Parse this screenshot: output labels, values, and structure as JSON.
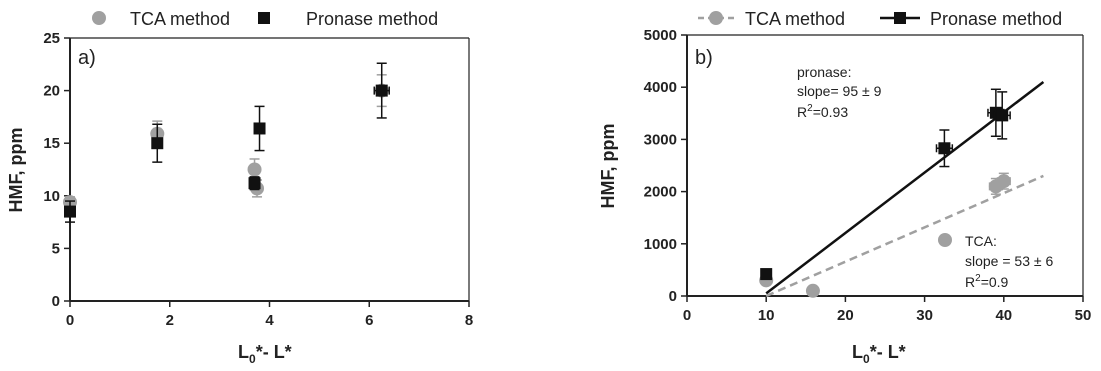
{
  "chart_data": [
    {
      "type": "scatter",
      "panel_label": "a)",
      "xlabel": "L",
      "xlabel_parts": {
        "base1": "L",
        "sub": "0",
        "rest": "*- L*"
      },
      "ylabel": "HMF, ppm",
      "xlim": [
        0,
        8
      ],
      "ylim": [
        0,
        25
      ],
      "xticks": [
        0,
        2,
        4,
        6,
        8
      ],
      "yticks": [
        0,
        5,
        10,
        15,
        20,
        25
      ],
      "legend_position": "top",
      "series": [
        {
          "name": "TCA method",
          "marker": "circle",
          "color": "#a0a0a0",
          "points": [
            {
              "x": 0.0,
              "y": 9.4,
              "yerr": 0.5,
              "xerr": 0.05
            },
            {
              "x": 1.75,
              "y": 15.9,
              "yerr": 1.2,
              "xerr": 0.05
            },
            {
              "x": 3.7,
              "y": 12.5,
              "yerr": 1.0,
              "xerr": 0.05
            },
            {
              "x": 3.75,
              "y": 10.7,
              "yerr": 0.8,
              "xerr": 0.05
            },
            {
              "x": 6.25,
              "y": 20.0,
              "yerr": 1.5,
              "xerr": 0.15
            }
          ]
        },
        {
          "name": "Pronase method",
          "marker": "square",
          "color": "#111111",
          "points": [
            {
              "x": 0.0,
              "y": 8.5,
              "yerr": 1.0,
              "xerr": 0.05
            },
            {
              "x": 1.75,
              "y": 15.0,
              "yerr": 1.8,
              "xerr": 0.05
            },
            {
              "x": 3.7,
              "y": 11.2,
              "yerr": 0.6,
              "xerr": 0.05
            },
            {
              "x": 3.8,
              "y": 16.4,
              "yerr": 2.1,
              "xerr": 0.05
            },
            {
              "x": 6.25,
              "y": 20.0,
              "yerr": 2.6,
              "xerr": 0.15
            }
          ]
        }
      ]
    },
    {
      "type": "scatter",
      "panel_label": "b)",
      "xlabel": "L",
      "xlabel_parts": {
        "base1": "L",
        "sub": "0",
        "rest": "*- L*"
      },
      "ylabel": "HMF, ppm",
      "xlim": [
        0,
        50
      ],
      "ylim": [
        0,
        5000
      ],
      "xticks": [
        0,
        10,
        20,
        30,
        40,
        50
      ],
      "yticks": [
        0,
        1000,
        2000,
        3000,
        4000,
        5000
      ],
      "legend_position": "top",
      "series": [
        {
          "name": "TCA method",
          "marker": "circle",
          "color": "#a0a0a0",
          "line_style": "dashed",
          "points": [
            {
              "x": 10.0,
              "y": 300,
              "yerr": 0,
              "xerr": 0
            },
            {
              "x": 15.9,
              "y": 100,
              "yerr": 0,
              "xerr": 0
            },
            {
              "x": 39.0,
              "y": 2100,
              "yerr": 150,
              "xerr": 0.8
            },
            {
              "x": 40.0,
              "y": 2200,
              "yerr": 150,
              "xerr": 0.8
            }
          ],
          "fit": {
            "x": [
              10,
              45
            ],
            "y": [
              0,
              2300
            ]
          }
        },
        {
          "name": "Pronase method",
          "marker": "square",
          "color": "#111111",
          "line_style": "solid",
          "points": [
            {
              "x": 10.0,
              "y": 420,
              "yerr": 0,
              "xerr": 0
            },
            {
              "x": 32.5,
              "y": 2830,
              "yerr": 350,
              "xerr": 1.0
            },
            {
              "x": 39.0,
              "y": 3510,
              "yerr": 450,
              "xerr": 1.0
            },
            {
              "x": 39.8,
              "y": 3460,
              "yerr": 450,
              "xerr": 1.0
            }
          ],
          "fit": {
            "x": [
              10,
              45
            ],
            "y": [
              50,
              4100
            ]
          }
        }
      ],
      "annotations": {
        "pronase": [
          "pronase:",
          "slope= 95 ± 9",
          "R",
          "2",
          "=0.93"
        ],
        "tca": [
          "TCA:",
          "slope = 53 ± 6",
          "R",
          "2",
          "=0.9"
        ]
      }
    }
  ]
}
